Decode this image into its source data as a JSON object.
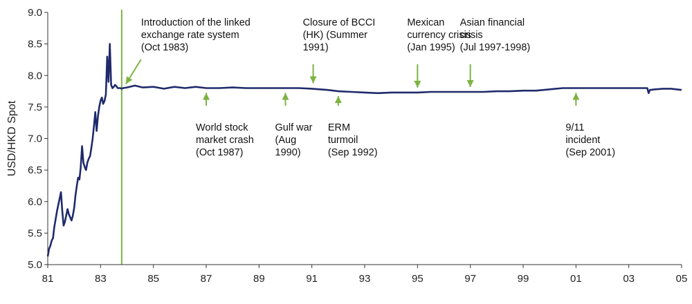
{
  "chart_data": {
    "type": "line",
    "ylabel": "USD/HKD Spot",
    "xlabel": "",
    "xlim": [
      1981,
      2005
    ],
    "ylim": [
      5.0,
      9.0
    ],
    "yticks": [
      5.0,
      5.5,
      6.0,
      6.5,
      7.0,
      7.5,
      8.0,
      8.5,
      9.0
    ],
    "ytick_labels": [
      "5.0",
      "5.5",
      "6.0",
      "6.5",
      "7.0",
      "7.5",
      "8.0",
      "8.5",
      "9.0"
    ],
    "xticks": [
      1981,
      1983,
      1985,
      1987,
      1989,
      1991,
      1993,
      1995,
      1997,
      1999,
      2001,
      2003,
      2005
    ],
    "xtick_labels": [
      "81",
      "83",
      "85",
      "87",
      "89",
      "91",
      "93",
      "95",
      "97",
      "99",
      "01",
      "03",
      "05"
    ],
    "grid": false,
    "series_color": "#1f2a6b",
    "annotation_color": "#7cb342",
    "series": [
      {
        "x": [
          1981.0,
          1981.05,
          1981.1,
          1981.15,
          1981.2,
          1981.25,
          1981.3,
          1981.35,
          1981.4,
          1981.45,
          1981.5,
          1981.55,
          1981.6,
          1981.65,
          1981.7,
          1981.75,
          1981.8,
          1981.85,
          1981.9,
          1981.95,
          1982.0,
          1982.05,
          1982.1,
          1982.15,
          1982.2,
          1982.25,
          1982.3,
          1982.35,
          1982.4,
          1982.45,
          1982.5,
          1982.55,
          1982.6,
          1982.65,
          1982.7,
          1982.75,
          1982.8,
          1982.85,
          1982.9,
          1982.95,
          1983.0,
          1983.05,
          1983.1,
          1983.15,
          1983.2,
          1983.25,
          1983.3,
          1983.35,
          1983.4,
          1983.45,
          1983.5,
          1983.55,
          1983.6,
          1983.65,
          1983.7,
          1983.75,
          1983.8,
          1983.85,
          1984.0,
          1984.3,
          1984.6,
          1985.0,
          1985.4,
          1985.8,
          1986.2,
          1986.6,
          1987.0,
          1987.5,
          1988.0,
          1988.5,
          1989.0,
          1989.5,
          1990.0,
          1990.5,
          1991.0,
          1991.3,
          1991.6,
          1992.0,
          1992.5,
          1993.0,
          1993.5,
          1994.0,
          1994.5,
          1995.0,
          1995.5,
          1996.0,
          1996.5,
          1997.0,
          1997.5,
          1998.0,
          1998.5,
          1999.0,
          1999.5,
          2000.0,
          2000.5,
          2001.0,
          2001.5,
          2002.0,
          2002.5,
          2003.0,
          2003.5,
          2003.7,
          2003.75,
          2003.8,
          2004.0,
          2004.3,
          2004.6,
          2004.8,
          2005.0
        ],
        "values": [
          5.13,
          5.25,
          5.3,
          5.38,
          5.42,
          5.6,
          5.72,
          5.85,
          5.95,
          6.05,
          6.15,
          5.85,
          5.62,
          5.68,
          5.78,
          5.88,
          5.8,
          5.75,
          5.7,
          5.78,
          5.9,
          6.1,
          6.25,
          6.38,
          6.35,
          6.55,
          6.88,
          6.62,
          6.55,
          6.5,
          6.62,
          6.68,
          6.72,
          6.85,
          7.0,
          7.2,
          7.42,
          7.12,
          7.35,
          7.5,
          7.6,
          7.65,
          7.55,
          7.6,
          7.7,
          8.3,
          7.9,
          8.5,
          7.85,
          7.8,
          7.82,
          7.85,
          7.83,
          7.8,
          7.8,
          7.8,
          7.79,
          7.8,
          7.81,
          7.84,
          7.81,
          7.82,
          7.79,
          7.82,
          7.8,
          7.82,
          7.8,
          7.8,
          7.81,
          7.8,
          7.8,
          7.8,
          7.8,
          7.8,
          7.79,
          7.78,
          7.77,
          7.75,
          7.74,
          7.73,
          7.72,
          7.73,
          7.73,
          7.73,
          7.74,
          7.74,
          7.74,
          7.74,
          7.74,
          7.75,
          7.75,
          7.76,
          7.76,
          7.78,
          7.8,
          7.8,
          7.8,
          7.8,
          7.8,
          7.8,
          7.8,
          7.8,
          7.72,
          7.77,
          7.78,
          7.79,
          7.79,
          7.78,
          7.77
        ]
      }
    ],
    "vertical_marker": {
      "x": 1983.8
    },
    "annotations": [
      {
        "lines": [
          "Introduction of the linked",
          "exchange rate system",
          "(Oct 1983)"
        ],
        "target_x": 1983.8,
        "target_y": 7.8,
        "position": "above"
      },
      {
        "lines": [
          "Closure of BCCI",
          "(HK) (Summer",
          "1991)"
        ],
        "target_x": 1991.05,
        "target_y": 7.8,
        "position": "above"
      },
      {
        "lines": [
          "Mexican",
          "currency crisis",
          "(Jan 1995)"
        ],
        "target_x": 1995.0,
        "target_y": 7.73,
        "position": "above"
      },
      {
        "lines": [
          "Asian financial",
          "crisis",
          "(Jul 1997-1998)"
        ],
        "target_x": 1997.0,
        "target_y": 7.74,
        "position": "above"
      },
      {
        "lines": [
          "World stock",
          "market crash",
          "(Oct 1987)"
        ],
        "target_x": 1987.0,
        "target_y": 7.8,
        "position": "below"
      },
      {
        "lines": [
          "Gulf war",
          "(Aug",
          "1990)"
        ],
        "target_x": 1990.0,
        "target_y": 7.8,
        "position": "below"
      },
      {
        "lines": [
          "ERM",
          "turmoil",
          "(Sep 1992)"
        ],
        "target_x": 1992.0,
        "target_y": 7.75,
        "position": "below"
      },
      {
        "lines": [
          "9/11",
          "incident",
          "(Sep 2001)"
        ],
        "target_x": 2001.0,
        "target_y": 7.8,
        "position": "below"
      }
    ]
  }
}
